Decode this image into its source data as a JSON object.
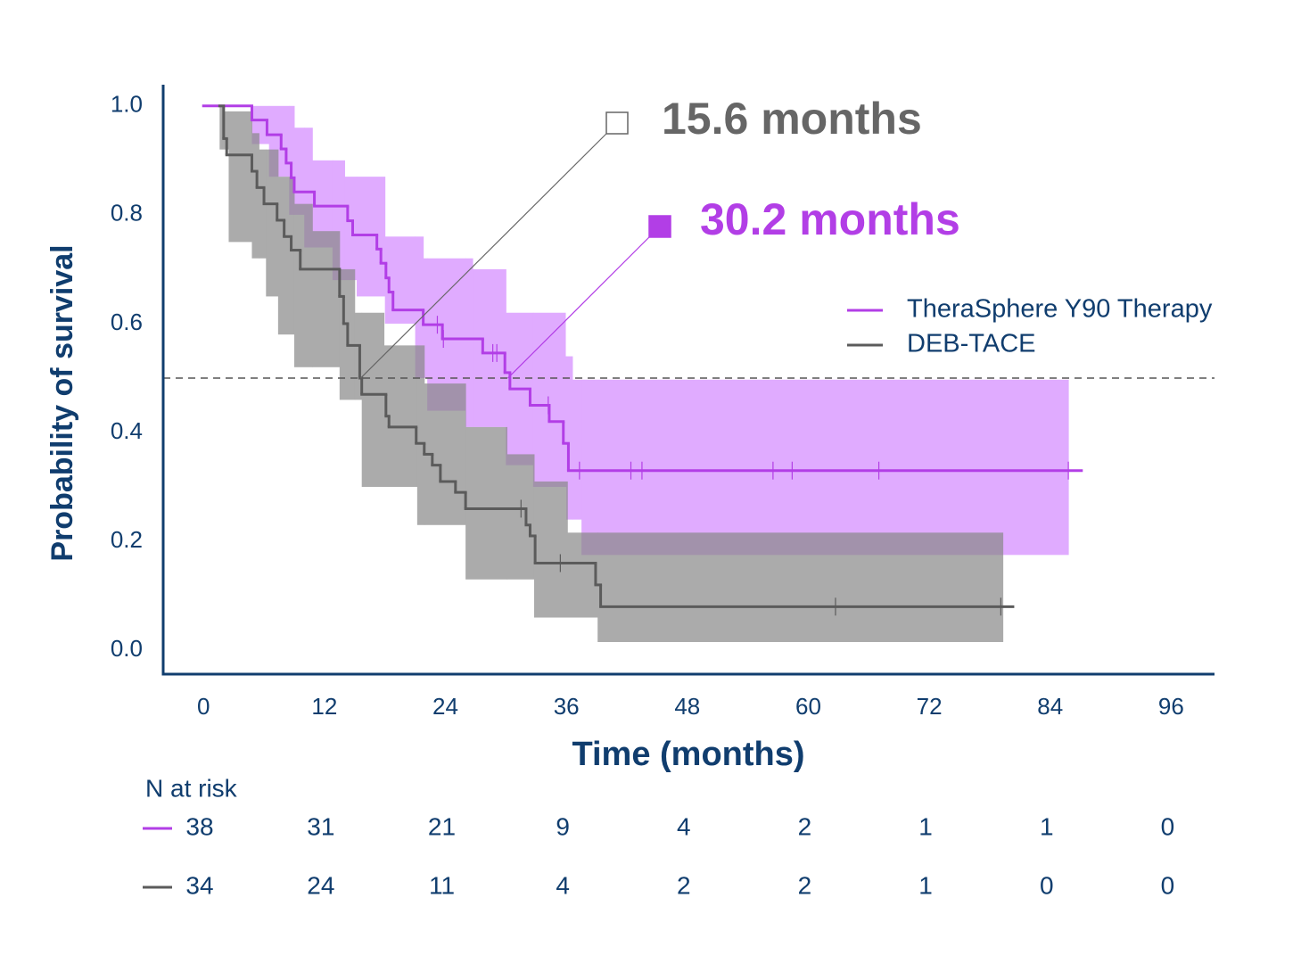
{
  "chart_data": {
    "type": "kaplan-meier",
    "x_label": "Time (months)",
    "y_label": "Probability of survival",
    "xlim": [
      -4,
      100.3
    ],
    "ylim": [
      -0.044,
      1.039
    ],
    "xticks": [
      0,
      12,
      24,
      36,
      48,
      60,
      72,
      84,
      96
    ],
    "yticks": [
      {
        "value": 0,
        "label": "0.0"
      },
      0.2,
      0.4,
      0.6,
      0.8,
      {
        "value": 1,
        "label": "1.0"
      }
    ],
    "hline": 0.5,
    "legend": "right",
    "series": [
      {
        "name": "TheraSphere Y90 Therapy",
        "color": "#b23ee6",
        "ci_color": "#e0abff",
        "x": [
          0,
          4.8,
          6.3,
          7.7,
          8.2,
          8.7,
          9.0,
          11,
          14.3,
          14.8,
          17.2,
          17.6,
          18.1,
          18.4,
          18.8,
          21.8,
          23.7,
          27.7,
          29.9,
          30.4,
          32.4,
          34.3,
          35.7,
          36.2,
          87.1
        ],
        "values": [
          1.0,
          0.974,
          0.947,
          0.921,
          0.895,
          0.868,
          0.842,
          0.816,
          0.789,
          0.763,
          0.737,
          0.711,
          0.684,
          0.658,
          0.625,
          0.598,
          0.572,
          0.546,
          0.51,
          0.48,
          0.45,
          0.42,
          0.38,
          0.33,
          0.33
        ],
        "ci_x": [
          4.8,
          6.5,
          8.5,
          9.0,
          10.0,
          10.8,
          12.8,
          14.0,
          15.2,
          18.0,
          21.0,
          21.8,
          22.2,
          26.0,
          26.7,
          30.0,
          32.7,
          35.9,
          36.0,
          36.6,
          37.5,
          85.8
        ],
        "ci_upper": [
          1.0,
          1.0,
          1.0,
          0.96,
          0.96,
          0.9,
          0.9,
          0.87,
          0.87,
          0.76,
          0.76,
          0.72,
          0.72,
          0.72,
          0.7,
          0.62,
          0.62,
          0.54,
          0.54,
          0.497,
          0.497,
          0.497
        ],
        "ci_lower": [
          0.93,
          0.87,
          0.8,
          0.8,
          0.74,
          0.74,
          0.68,
          0.68,
          0.65,
          0.6,
          0.5,
          0.5,
          0.44,
          0.41,
          0.41,
          0.34,
          0.3,
          0.3,
          0.24,
          0.24,
          0.175,
          0.175
        ],
        "censored": {
          "x": [
            23.2,
            23.8,
            28.7,
            29.1,
            34.2,
            37.3,
            42.4,
            43.5,
            56.5,
            58.4,
            67,
            85.8
          ],
          "values": [
            0.598,
            0.572,
            0.546,
            0.546,
            0.45,
            0.33,
            0.33,
            0.33,
            0.33,
            0.33,
            0.33,
            0.33
          ]
        }
      },
      {
        "name": "DEB-TACE",
        "color": "#5b5b5b",
        "ci_color": "#888888",
        "x": [
          1.6,
          2.0,
          2.3,
          4.8,
          5.3,
          6.0,
          7.3,
          8.0,
          8.7,
          9.6,
          13.5,
          13.9,
          14.3,
          15.5,
          15.7,
          18.1,
          18.4,
          21.1,
          21.9,
          22.7,
          23.5,
          25.0,
          26.0,
          32.0,
          32.4,
          32.9,
          38.9,
          39.4,
          80.3
        ],
        "values": [
          1.0,
          0.94,
          0.91,
          0.88,
          0.85,
          0.82,
          0.79,
          0.76,
          0.735,
          0.7,
          0.65,
          0.6,
          0.56,
          0.5,
          0.47,
          0.43,
          0.41,
          0.38,
          0.36,
          0.34,
          0.31,
          0.29,
          0.26,
          0.23,
          0.21,
          0.16,
          0.12,
          0.08,
          0.08
        ],
        "ci_x": [
          1.6,
          1.9,
          2.5,
          4.8,
          5.5,
          6.2,
          7.4,
          9.0,
          10.8,
          13.5,
          15.0,
          15.7,
          17.9,
          21.2,
          21.9,
          26.0,
          30.1,
          32.8,
          36.1,
          39.1,
          79.3
        ],
        "ci_upper": [
          1.0,
          0.99,
          0.99,
          0.95,
          0.92,
          0.92,
          0.87,
          0.82,
          0.77,
          0.7,
          0.62,
          0.62,
          0.56,
          0.56,
          0.49,
          0.41,
          0.36,
          0.31,
          0.216,
          0.216,
          0.216
        ],
        "ci_lower": [
          0.92,
          0.92,
          0.75,
          0.72,
          0.72,
          0.65,
          0.58,
          0.52,
          0.52,
          0.46,
          0.46,
          0.3,
          0.3,
          0.23,
          0.23,
          0.13,
          0.13,
          0.06,
          0.06,
          0.015,
          0.015
        ],
        "censored": {
          "x": [
            31.5,
            35.4,
            62.7,
            79.1
          ],
          "values": [
            0.26,
            0.16,
            0.08,
            0.08
          ]
        }
      }
    ],
    "annotations": [
      {
        "label": "15.6 months",
        "x": 15.6,
        "y": 0.5,
        "color": "#666666"
      },
      {
        "label": "30.2 months",
        "x": 30.2,
        "y": 0.5,
        "color": "#b23ee6"
      }
    ],
    "risk_table": {
      "title": "N at risk",
      "rows": [
        [
          38,
          31,
          21,
          9,
          4,
          2,
          1,
          1,
          0
        ],
        [
          34,
          24,
          11,
          4,
          2,
          2,
          1,
          0,
          0
        ]
      ]
    }
  }
}
